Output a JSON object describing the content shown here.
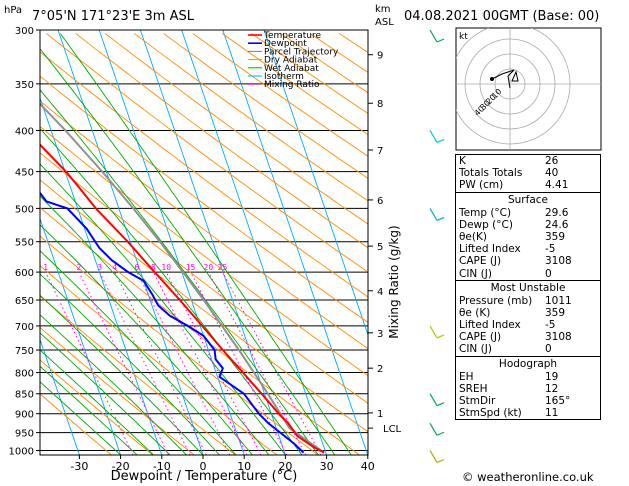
{
  "header": {
    "location": "7°05'N  171°23'E  3m  ASL",
    "datetime": "04.08.2021  00GMT  (Base: 00)",
    "hpa_label": "hPa",
    "km_label": "km",
    "asl_label": "ASL"
  },
  "legend": [
    {
      "label": "Temperature",
      "color": "#ff0000"
    },
    {
      "label": "Dewpoint",
      "color": "#0000ff"
    },
    {
      "label": "Parcel Trajectory",
      "color": "#808080"
    },
    {
      "label": "Dry Adiabat",
      "color": "#ff8c00"
    },
    {
      "label": "Wet Adiabat",
      "color": "#00aa00"
    },
    {
      "label": "Isotherm",
      "color": "#00aaff"
    },
    {
      "label": "Mixing Ratio",
      "color": "#ff00ff"
    }
  ],
  "chart_data": {
    "type": "line",
    "subtype": "skew-t",
    "xlabel": "Dewpoint / Temperature (°C)",
    "ylabel_right": "Mixing Ratio (g/kg)",
    "x_ticks": [
      -30,
      -20,
      -10,
      0,
      10,
      20,
      30,
      40
    ],
    "pressure_levels": [
      300,
      350,
      400,
      450,
      500,
      550,
      600,
      650,
      700,
      750,
      800,
      850,
      900,
      950,
      1000
    ],
    "km_ticks": [
      {
        "label": "9",
        "p": 322
      },
      {
        "label": "8",
        "p": 370
      },
      {
        "label": "7",
        "p": 423
      },
      {
        "label": "6",
        "p": 488
      },
      {
        "label": "5",
        "p": 557
      },
      {
        "label": "4",
        "p": 633
      },
      {
        "label": "3",
        "p": 714
      },
      {
        "label": "2",
        "p": 790
      },
      {
        "label": "1",
        "p": 898
      },
      {
        "label": "LCL",
        "p": 938
      }
    ],
    "mixing_ratio_labels": [
      "1",
      "2",
      "3",
      "4",
      "6",
      "8",
      "10",
      "15",
      "20",
      "25"
    ],
    "mixing_ratio_values": [
      1,
      2,
      3,
      4,
      6,
      8,
      10,
      15,
      20,
      25
    ],
    "temperature": [
      {
        "p": 1006,
        "t": 29.6
      },
      {
        "p": 990,
        "t": 27.5
      },
      {
        "p": 960,
        "t": 24.5
      },
      {
        "p": 925,
        "t": 23.3
      },
      {
        "p": 900,
        "t": 21.8
      },
      {
        "p": 850,
        "t": 19.3
      },
      {
        "p": 800,
        "t": 16.5
      },
      {
        "p": 750,
        "t": 13.5
      },
      {
        "p": 700,
        "t": 10.5
      },
      {
        "p": 650,
        "t": 7.2
      },
      {
        "p": 600,
        "t": 3.4
      },
      {
        "p": 550,
        "t": -0.6
      },
      {
        "p": 500,
        "t": -5.6
      },
      {
        "p": 470,
        "t": -8.0
      },
      {
        "p": 450,
        "t": -9.8
      },
      {
        "p": 400,
        "t": -16.0
      },
      {
        "p": 370,
        "t": -20.8
      },
      {
        "p": 350,
        "t": -24.5
      },
      {
        "p": 320,
        "t": -29.5
      },
      {
        "p": 300,
        "t": -33.5
      }
    ],
    "dewpoint": [
      {
        "p": 1006,
        "t": 24.6
      },
      {
        "p": 980,
        "t": 23.0
      },
      {
        "p": 955,
        "t": 21.0
      },
      {
        "p": 925,
        "t": 18.5
      },
      {
        "p": 900,
        "t": 17.0
      },
      {
        "p": 850,
        "t": 15.0
      },
      {
        "p": 810,
        "t": 10.5
      },
      {
        "p": 790,
        "t": 12.0
      },
      {
        "p": 770,
        "t": 11.0
      },
      {
        "p": 750,
        "t": 11.5
      },
      {
        "p": 720,
        "t": 10.0
      },
      {
        "p": 700,
        "t": 7.0
      },
      {
        "p": 680,
        "t": 3.5
      },
      {
        "p": 660,
        "t": 1.5
      },
      {
        "p": 640,
        "t": 1.0
      },
      {
        "p": 615,
        "t": 0.0
      },
      {
        "p": 600,
        "t": -3.0
      },
      {
        "p": 580,
        "t": -6.0
      },
      {
        "p": 560,
        "t": -8.0
      },
      {
        "p": 530,
        "t": -9.5
      },
      {
        "p": 500,
        "t": -12.5
      },
      {
        "p": 490,
        "t": -17.0
      },
      {
        "p": 470,
        "t": -18.5
      },
      {
        "p": 450,
        "t": -23.0
      },
      {
        "p": 430,
        "t": -25.0
      },
      {
        "p": 400,
        "t": -29.0
      },
      {
        "p": 370,
        "t": -33.0
      },
      {
        "p": 350,
        "t": -42.0
      },
      {
        "p": 320,
        "t": -45.0
      },
      {
        "p": 310,
        "t": -50.0
      },
      {
        "p": 300,
        "t": -56.0
      }
    ],
    "parcel": [
      {
        "p": 1006,
        "t": 29.6
      },
      {
        "p": 938,
        "t": 23.2
      },
      {
        "p": 900,
        "t": 22.2
      },
      {
        "p": 850,
        "t": 20.8
      },
      {
        "p": 800,
        "t": 19.2
      },
      {
        "p": 750,
        "t": 17.4
      },
      {
        "p": 700,
        "t": 15.3
      },
      {
        "p": 650,
        "t": 13.0
      },
      {
        "p": 600,
        "t": 10.3
      },
      {
        "p": 550,
        "t": 7.2
      },
      {
        "p": 500,
        "t": 3.5
      },
      {
        "p": 450,
        "t": -1.0
      },
      {
        "p": 400,
        "t": -6.5
      },
      {
        "p": 350,
        "t": -13.5
      },
      {
        "p": 300,
        "t": -22.5
      }
    ]
  },
  "hodograph": {
    "label": "kt",
    "rings": [
      "40",
      "30",
      "20",
      "10"
    ]
  },
  "indices": [
    {
      "label": "K",
      "value": "26"
    },
    {
      "label": "Totals Totals",
      "value": "40"
    },
    {
      "label": "PW (cm)",
      "value": "4.41"
    }
  ],
  "surface": {
    "title": "Surface",
    "rows": [
      {
        "label": "Temp (°C)",
        "value": "29.6"
      },
      {
        "label": "Dewp (°C)",
        "value": "24.6"
      },
      {
        "label": "θe(K)",
        "value": "359"
      },
      {
        "label": "Lifted Index",
        "value": "-5"
      },
      {
        "label": "CAPE (J)",
        "value": "3108"
      },
      {
        "label": "CIN (J)",
        "value": "0"
      }
    ]
  },
  "most_unstable": {
    "title": "Most Unstable",
    "rows": [
      {
        "label": "Pressure (mb)",
        "value": "1011"
      },
      {
        "label": "θe (K)",
        "value": "359"
      },
      {
        "label": "Lifted Index",
        "value": "-5"
      },
      {
        "label": "CAPE (J)",
        "value": "3108"
      },
      {
        "label": "CIN (J)",
        "value": "0"
      }
    ]
  },
  "hodograph_table": {
    "title": "Hodograph",
    "rows": [
      {
        "label": "EH",
        "value": "19"
      },
      {
        "label": "SREH",
        "value": "12"
      },
      {
        "label": "StmDir",
        "value": "165°"
      },
      {
        "label": "StmSpd (kt)",
        "value": "11"
      }
    ]
  },
  "copyright": "© weatheronline.co.uk"
}
